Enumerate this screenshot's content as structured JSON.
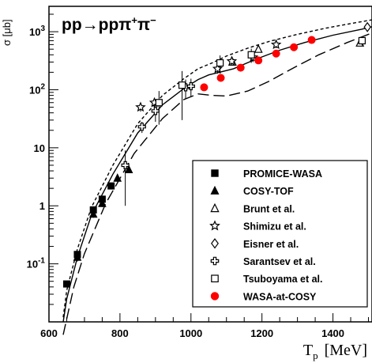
{
  "chart_data": {
    "type": "scatter",
    "title": "pp→ppπ⁺π⁻",
    "title_parts": {
      "base": "pp→ppπ",
      "sup1": "+",
      "mid": "π",
      "sup2": "−"
    },
    "xlabel": "Tₚ  [MeV]",
    "xlabel_parts": {
      "main": "T",
      "sub": "p",
      "unit": "[MeV]"
    },
    "ylabel": "σ [μb]",
    "xlim": [
      600,
      1510
    ],
    "ylim": [
      0.01,
      2000
    ],
    "yscale": "log",
    "x_ticks": [
      "600",
      "800",
      "1000",
      "1200",
      "1400"
    ],
    "y_ticks": [
      "10⁻¹",
      "1",
      "10",
      "10²",
      "10³"
    ],
    "y_tick_parts": [
      {
        "base": "10",
        "sup": "-1"
      },
      {
        "base": "1",
        "sup": ""
      },
      {
        "base": "10",
        "sup": ""
      },
      {
        "base": "10",
        "sup": "2"
      },
      {
        "base": "10",
        "sup": "3"
      }
    ],
    "legend_position": "bottom-right",
    "series": [
      {
        "name": "PROMICE-WASA",
        "marker": "square-filled",
        "color": "#000000",
        "x": [
          650,
          680,
          725,
          750,
          775
        ],
        "y": [
          0.045,
          0.145,
          0.85,
          1.3,
          2.2
        ],
        "err": [
          0,
          0.02,
          0.1,
          0.15,
          0.2
        ]
      },
      {
        "name": "COSY-TOF",
        "marker": "triangle-filled",
        "color": "#000000",
        "x": [
          680,
          725,
          750,
          793,
          825
        ],
        "y": [
          0.13,
          0.72,
          1.1,
          3.0,
          4.2
        ],
        "err": [
          0.02,
          0.1,
          0.15,
          0.4,
          0.5
        ]
      },
      {
        "name": "Brunt et al.",
        "marker": "triangle-open",
        "color": "#000000",
        "x": [
          1117,
          1190,
          1476
        ],
        "y": [
          300,
          500,
          640
        ],
        "err": [
          0,
          60,
          60
        ]
      },
      {
        "name": "Shimizu et al.",
        "marker": "star-open",
        "color": "#000000",
        "x": [
          858,
          897,
          1075,
          1115,
          1175,
          1240
        ],
        "y": [
          50,
          60,
          230,
          310,
          360,
          600
        ],
        "err": [
          8,
          10,
          40,
          50,
          60,
          80
        ]
      },
      {
        "name": "Eisner et al.",
        "marker": "diamond-open",
        "color": "#000000",
        "x": [
          1497
        ],
        "y": [
          1200
        ],
        "err": [
          0
        ]
      },
      {
        "name": "Sarantsev et al.",
        "marker": "cross-open",
        "color": "#000000",
        "x": [
          815,
          862,
          900,
          985,
          1000
        ],
        "y": [
          5.0,
          23.0,
          43.0,
          110.0,
          115.0
        ],
        "err": [
          4.0,
          5.0,
          15.0,
          40.0,
          40.0
        ]
      },
      {
        "name": "Tsuboyama et al.",
        "marker": "square-open",
        "color": "#000000",
        "x": [
          910,
          975,
          1082,
          1170,
          1482
        ],
        "y": [
          60,
          120,
          290,
          400,
          700
        ],
        "err": [
          35,
          90,
          100,
          110,
          120
        ]
      },
      {
        "name": "WASA-at-COSY",
        "marker": "circle-filled",
        "color": "#ff0000",
        "x": [
          1037,
          1084,
          1140,
          1190,
          1240,
          1290,
          1340
        ],
        "y": [
          110,
          160,
          240,
          320,
          420,
          540,
          720
        ],
        "err": [
          0,
          0,
          0,
          0,
          0,
          0,
          0
        ]
      }
    ],
    "curves": [
      {
        "style": "solid",
        "x": [
          640,
          650,
          680,
          720,
          780,
          850,
          920,
          980,
          1020,
          1050,
          1080,
          1120,
          1180,
          1250,
          1320,
          1400,
          1480,
          1510
        ],
        "y": [
          0.01,
          0.025,
          0.13,
          0.7,
          3.5,
          18,
          55,
          105,
          150,
          180,
          200,
          230,
          330,
          480,
          650,
          870,
          1100,
          1220
        ]
      },
      {
        "style": "dashed",
        "x": [
          640,
          650,
          680,
          720,
          780,
          850,
          920,
          980,
          1020,
          1060,
          1100,
          1160,
          1220,
          1300,
          1380,
          1450,
          1510
        ],
        "y": [
          0.012,
          0.035,
          0.18,
          0.95,
          5.0,
          26,
          80,
          155,
          230,
          290,
          380,
          520,
          680,
          900,
          1150,
          1380,
          1600
        ]
      },
      {
        "style": "long-dash",
        "x": [
          640,
          670,
          700,
          760,
          840,
          920,
          980,
          1020,
          1060,
          1100,
          1160,
          1220,
          1290,
          1360,
          1440,
          1510
        ],
        "y": [
          0.006,
          0.04,
          0.15,
          1.1,
          8.0,
          32,
          68,
          85,
          80,
          78,
          95,
          140,
          240,
          400,
          650,
          950
        ]
      }
    ]
  }
}
